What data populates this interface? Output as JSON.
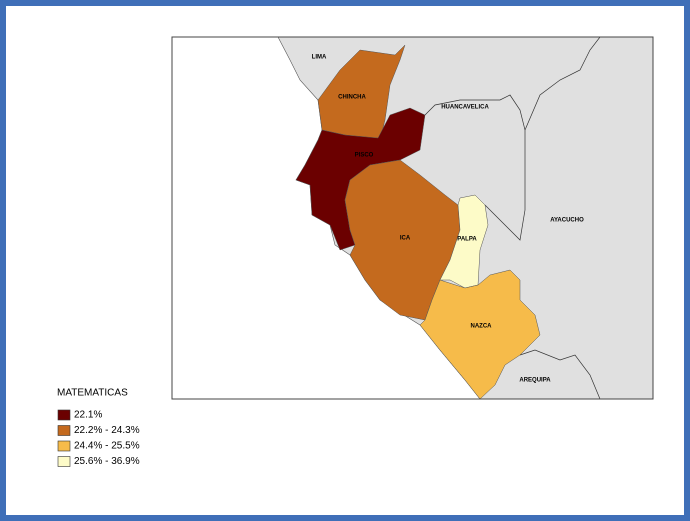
{
  "map": {
    "regions": [
      {
        "label": "LIMA",
        "color": "#e0e0e0"
      },
      {
        "label": "CHINCHA",
        "color": "#c46a1e"
      },
      {
        "label": "PISCO",
        "color": "#6b0000"
      },
      {
        "label": "HUANCAVELICA",
        "color": "#e0e0e0"
      },
      {
        "label": "AYACUCHO",
        "color": "#e0e0e0"
      },
      {
        "label": "ICA",
        "color": "#c46a1e"
      },
      {
        "label": "PALPA",
        "color": "#fdfbc8"
      },
      {
        "label": "NAZCA",
        "color": "#f6bb4a"
      },
      {
        "label": "AREQUIPA",
        "color": "#e0e0e0"
      }
    ]
  },
  "legend": {
    "title": "MATEMATICAS",
    "items": [
      {
        "label": "22.1%",
        "color": "#6b0000"
      },
      {
        "label": "22.2% - 24.3%",
        "color": "#c46a1e"
      },
      {
        "label": "24.4% - 25.5%",
        "color": "#f6bb4a"
      },
      {
        "label": "25.6% - 36.9%",
        "color": "#fdfbc8"
      }
    ]
  }
}
